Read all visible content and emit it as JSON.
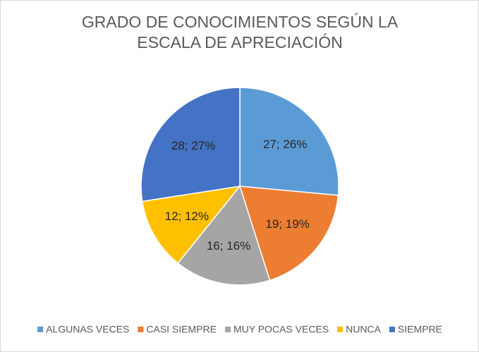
{
  "chart_data": {
    "type": "pie",
    "title": [
      "GRADO DE CONOCIMIENTOS  SEGÚN LA",
      "ESCALA DE APRECIACIÓN"
    ],
    "categories": [
      "ALGUNAS VECES",
      "CASI SIEMPRE",
      "MUY POCAS VECES",
      "NUNCA",
      "SIEMPRE"
    ],
    "values": [
      27,
      19,
      16,
      12,
      28
    ],
    "value_labels": [
      "27; 26%",
      "19; 19%",
      "16; 16%",
      "12; 12%",
      "28; 27%"
    ],
    "colors": [
      "#5b9bd5",
      "#ed7d31",
      "#a5a5a5",
      "#ffc000",
      "#4472c4"
    ],
    "legend": "bottom"
  }
}
